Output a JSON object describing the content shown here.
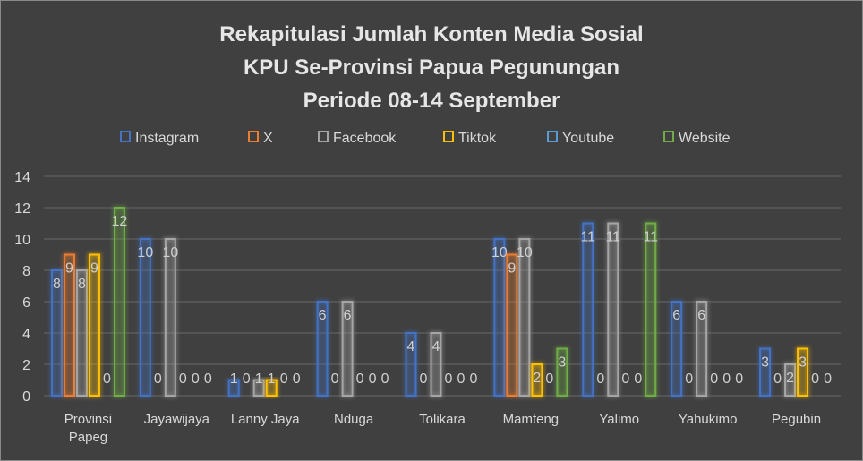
{
  "chart_data": {
    "type": "bar",
    "title": [
      "Rekapitulasi Jumlah Konten Media Sosial",
      "KPU Se-Provinsi Papua Pegunungan",
      "Periode 08-14 September"
    ],
    "categories": [
      [
        "Provinsi",
        "Papeg"
      ],
      [
        "Jayawijaya"
      ],
      [
        "Lanny Jaya"
      ],
      [
        "Nduga"
      ],
      [
        "Tolikara"
      ],
      [
        "Mamteng"
      ],
      [
        "Yalimo"
      ],
      [
        "Yahukimo"
      ],
      [
        "Pegubin"
      ]
    ],
    "series": [
      {
        "name": "Instagram",
        "color": "#4472c4",
        "values": [
          8,
          10,
          1,
          6,
          4,
          10,
          11,
          6,
          3
        ]
      },
      {
        "name": "X",
        "color": "#ed7d31",
        "values": [
          9,
          0,
          0,
          0,
          0,
          9,
          0,
          0,
          0
        ]
      },
      {
        "name": "Facebook",
        "color": "#a5a5a5",
        "values": [
          8,
          10,
          1,
          6,
          4,
          10,
          11,
          6,
          2
        ]
      },
      {
        "name": "Tiktok",
        "color": "#ffc000",
        "values": [
          9,
          0,
          1,
          0,
          0,
          2,
          0,
          0,
          3
        ]
      },
      {
        "name": "Youtube",
        "color": "#5b9bd5",
        "values": [
          0,
          0,
          0,
          0,
          0,
          0,
          0,
          0,
          0
        ]
      },
      {
        "name": "Website",
        "color": "#70ad47",
        "values": [
          12,
          0,
          0,
          0,
          0,
          3,
          11,
          0,
          0
        ]
      }
    ],
    "ylim": [
      0,
      14
    ],
    "yticks": [
      "0",
      "2",
      "4",
      "6",
      "8",
      "10",
      "12",
      "14"
    ],
    "legend_position": "top",
    "grid": true,
    "data_labels": true
  }
}
